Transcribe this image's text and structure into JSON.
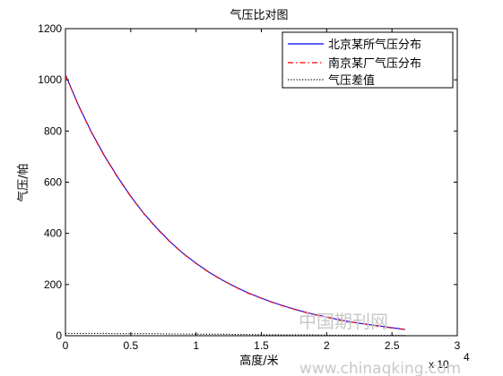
{
  "chart_data": {
    "type": "line",
    "title": "气压比对图",
    "xlabel": "高度/米",
    "ylabel": "气压/帕",
    "xlim": [
      0,
      3
    ],
    "ylim": [
      0,
      1200
    ],
    "x_exponent_label": "x 10",
    "x_exponent_power": "4",
    "xticks": [
      0,
      0.5,
      1,
      1.5,
      2,
      2.5,
      3
    ],
    "xtick_labels": [
      "0",
      "0.5",
      "1",
      "1.5",
      "2",
      "2.5",
      "3"
    ],
    "yticks": [
      0,
      200,
      400,
      600,
      800,
      1000,
      1200
    ],
    "ytick_labels": [
      "0",
      "200",
      "400",
      "600",
      "800",
      "1000",
      "1200"
    ],
    "legend_position": "top-right",
    "x": [
      0,
      0.1,
      0.2,
      0.3,
      0.4,
      0.5,
      0.6,
      0.7,
      0.8,
      0.9,
      1.0,
      1.1,
      1.2,
      1.3,
      1.4,
      1.5,
      1.6,
      1.7,
      1.8,
      1.9,
      2.0,
      2.1,
      2.2,
      2.3,
      2.4,
      2.5,
      2.6
    ],
    "series": [
      {
        "name": "北京某所气压分布",
        "color": "#0000ff",
        "style": "solid",
        "values": [
          1020,
          900,
          795,
          702,
          620,
          545,
          478,
          420,
          368,
          322,
          283,
          248,
          218,
          191,
          167,
          147,
          128,
          112,
          97,
          84,
          73,
          62,
          53,
          45,
          38,
          31,
          25
        ]
      },
      {
        "name": "南京某厂气压分布",
        "color": "#ff0000",
        "style": "dashdot",
        "values": [
          1018,
          898,
          793,
          700,
          618,
          543,
          477,
          418,
          367,
          321,
          282,
          247,
          217,
          190,
          166,
          146,
          127,
          111,
          96,
          83,
          72,
          61,
          52,
          44,
          37,
          30,
          24
        ]
      },
      {
        "name": "气压差值",
        "color": "#000000",
        "style": "dotted",
        "values": [
          9,
          9,
          9,
          9,
          8,
          8,
          8,
          8,
          7,
          7,
          6,
          6,
          6,
          5,
          5,
          4,
          4,
          3,
          3,
          3,
          2,
          2,
          2,
          1,
          1,
          1,
          1
        ]
      }
    ]
  },
  "watermark": {
    "line1": "中国期刊网",
    "line2": "www.chinaqking.com"
  }
}
